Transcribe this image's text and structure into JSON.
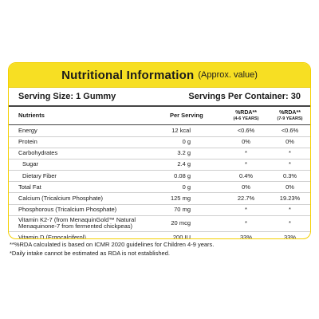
{
  "title": {
    "main": "Nutritional Information",
    "sub": "(Approx. value)"
  },
  "serving": {
    "size": "Serving Size: 1 Gummy",
    "per_container": "Servings Per Container: 30"
  },
  "headers": {
    "nutrients": "Nutrients",
    "per_serving": "Per Serving",
    "rda1": "%RDA**",
    "rda1_sub": "(4-6 YEARS)",
    "rda2": "%RDA**",
    "rda2_sub": "(7-9 YEARS)"
  },
  "rows": [
    {
      "name": "Energy",
      "value": "12 kcal",
      "rda1": "<0.6%",
      "rda2": "<0.6%"
    },
    {
      "name": "Protein",
      "value": "0 g",
      "rda1": "0%",
      "rda2": "0%"
    },
    {
      "name": "Carbohydrates",
      "value": "3.2 g",
      "rda1": "*",
      "rda2": "*"
    },
    {
      "name": "Sugar",
      "value": "2.4 g",
      "rda1": "*",
      "rda2": "*"
    },
    {
      "name": "Dietary Fiber",
      "value": "0.08 g",
      "rda1": "0.4%",
      "rda2": "0.3%"
    },
    {
      "name": "Total Fat",
      "value": "0 g",
      "rda1": "0%",
      "rda2": "0%"
    },
    {
      "name": "Calcium (Tricalcium Phosphate)",
      "value": "125 mg",
      "rda1": "22.7%",
      "rda2": "19.23%"
    },
    {
      "name": "Phosphorous (Tricalcium Phosphate)",
      "value": "70 mg",
      "rda1": "*",
      "rda2": "*"
    },
    {
      "name": "Vitamin K2-7 (from MenaquinGold™ Natural Menaquinone-7 from fermented chickpeas)",
      "value": "20 mcg",
      "rda1": "*",
      "rda2": "*"
    },
    {
      "name": "Vitamin D (Ergocalciferol)",
      "value": "200 IU",
      "rda1": "33%",
      "rda2": "33%"
    }
  ],
  "footnotes": [
    "**%RDA calculated is based on ICMR 2020 guidelines for Children 4-9 years.",
    "*Daily intake cannot be estimated as RDA is not established."
  ]
}
